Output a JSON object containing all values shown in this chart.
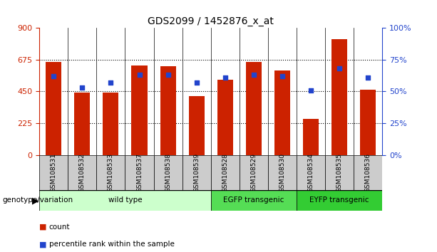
{
  "title": "GDS2099 / 1452876_x_at",
  "samples": [
    "GSM108531",
    "GSM108532",
    "GSM108533",
    "GSM108537",
    "GSM108538",
    "GSM108539",
    "GSM108528",
    "GSM108529",
    "GSM108530",
    "GSM108534",
    "GSM108535",
    "GSM108536"
  ],
  "counts": [
    660,
    440,
    440,
    635,
    630,
    415,
    530,
    660,
    600,
    255,
    820,
    460
  ],
  "percentiles": [
    62,
    53,
    57,
    63,
    63,
    57,
    61,
    63,
    62,
    51,
    68,
    61
  ],
  "ylim_left": [
    0,
    900
  ],
  "yticks_left": [
    0,
    225,
    450,
    675,
    900
  ],
  "ylim_right": [
    0,
    100
  ],
  "yticks_right": [
    0,
    25,
    50,
    75,
    100
  ],
  "bar_color": "#cc2200",
  "dot_color": "#2244cc",
  "groups": [
    {
      "label": "wild type",
      "start": 0,
      "end": 6,
      "color": "#ccffcc"
    },
    {
      "label": "EGFP transgenic",
      "start": 6,
      "end": 9,
      "color": "#55dd55"
    },
    {
      "label": "EYFP transgenic",
      "start": 9,
      "end": 12,
      "color": "#33cc33"
    }
  ],
  "group_row_label": "genotype/variation",
  "legend_count_label": "count",
  "legend_percentile_label": "percentile rank within the sample",
  "bar_width": 0.55,
  "title_fontsize": 10,
  "sample_bg_color": "#cccccc"
}
